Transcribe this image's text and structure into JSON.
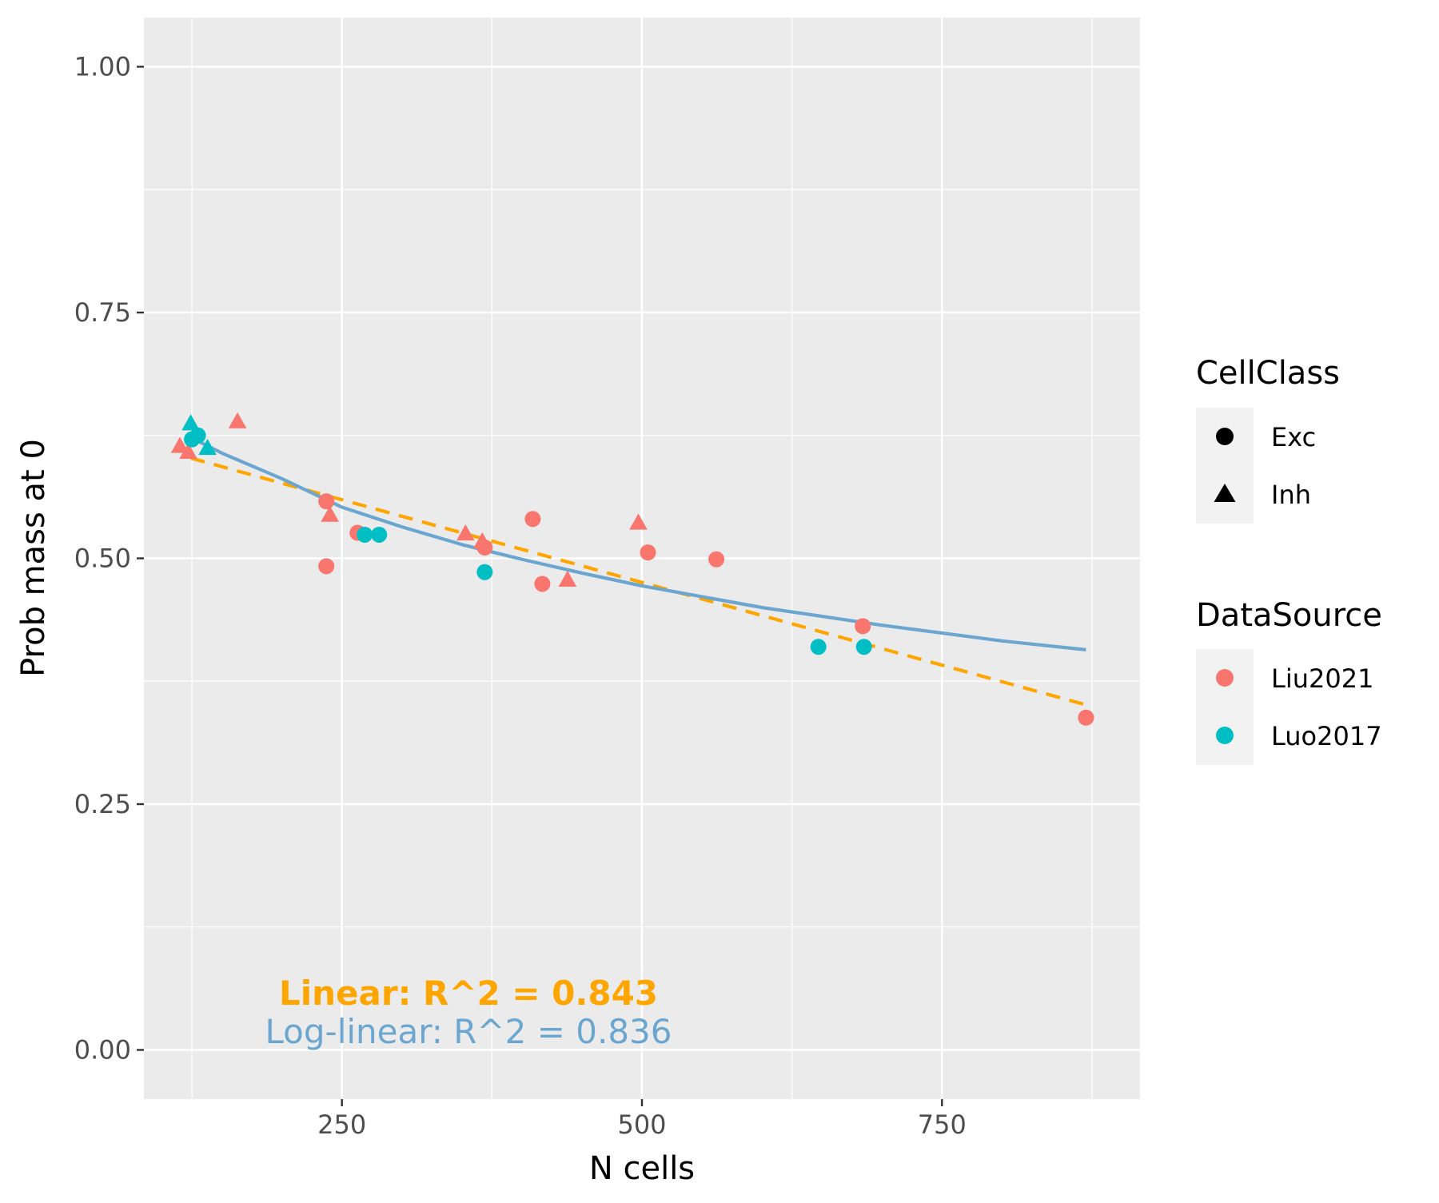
{
  "colors": {
    "panel_bg": "#EBEBEB",
    "grid": "#FFFFFF",
    "liu2021": "#F8766D",
    "luo2017": "#00BFC4",
    "linear_fit": "#FFA500",
    "loglinear_fit": "#6BA6D0",
    "legend_key_bg": "#F2F2F2"
  },
  "chart_data": {
    "type": "scatter",
    "xlabel": "N cells",
    "ylabel": "Prob mass at 0",
    "xlim": [
      85,
      915
    ],
    "ylim": [
      -0.05,
      1.05
    ],
    "x_ticks": [
      250,
      500,
      750
    ],
    "x_tick_labels": [
      "250",
      "500",
      "750"
    ],
    "x_minor_ticks": [
      125,
      375,
      625,
      875
    ],
    "y_ticks": [
      0,
      0.25,
      0.5,
      0.75,
      1.0
    ],
    "y_tick_labels": [
      "0.00",
      "0.25",
      "0.50",
      "0.75",
      "1.00"
    ],
    "y_minor_ticks": [
      0.125,
      0.375,
      0.625,
      0.875
    ],
    "grid": true,
    "points": [
      {
        "x": 115,
        "y": 0.613,
        "source": "Liu2021",
        "cellclass": "Inh"
      },
      {
        "x": 122,
        "y": 0.607,
        "source": "Liu2021",
        "cellclass": "Inh"
      },
      {
        "x": 163,
        "y": 0.638,
        "source": "Liu2021",
        "cellclass": "Inh"
      },
      {
        "x": 237,
        "y": 0.558,
        "source": "Liu2021",
        "cellclass": "Exc"
      },
      {
        "x": 237,
        "y": 0.492,
        "source": "Liu2021",
        "cellclass": "Exc"
      },
      {
        "x": 240,
        "y": 0.543,
        "source": "Liu2021",
        "cellclass": "Inh"
      },
      {
        "x": 263,
        "y": 0.526,
        "source": "Liu2021",
        "cellclass": "Exc"
      },
      {
        "x": 353,
        "y": 0.524,
        "source": "Liu2021",
        "cellclass": "Inh"
      },
      {
        "x": 367,
        "y": 0.516,
        "source": "Liu2021",
        "cellclass": "Inh"
      },
      {
        "x": 369,
        "y": 0.511,
        "source": "Liu2021",
        "cellclass": "Exc"
      },
      {
        "x": 409,
        "y": 0.54,
        "source": "Liu2021",
        "cellclass": "Exc"
      },
      {
        "x": 417,
        "y": 0.474,
        "source": "Liu2021",
        "cellclass": "Exc"
      },
      {
        "x": 438,
        "y": 0.477,
        "source": "Liu2021",
        "cellclass": "Inh"
      },
      {
        "x": 497,
        "y": 0.535,
        "source": "Liu2021",
        "cellclass": "Inh"
      },
      {
        "x": 505,
        "y": 0.506,
        "source": "Liu2021",
        "cellclass": "Exc"
      },
      {
        "x": 562,
        "y": 0.499,
        "source": "Liu2021",
        "cellclass": "Exc"
      },
      {
        "x": 684,
        "y": 0.431,
        "source": "Liu2021",
        "cellclass": "Exc"
      },
      {
        "x": 870,
        "y": 0.338,
        "source": "Liu2021",
        "cellclass": "Exc"
      },
      {
        "x": 124,
        "y": 0.636,
        "source": "Luo2017",
        "cellclass": "Inh"
      },
      {
        "x": 125,
        "y": 0.621,
        "source": "Luo2017",
        "cellclass": "Exc"
      },
      {
        "x": 130,
        "y": 0.625,
        "source": "Luo2017",
        "cellclass": "Exc"
      },
      {
        "x": 138,
        "y": 0.611,
        "source": "Luo2017",
        "cellclass": "Inh"
      },
      {
        "x": 269,
        "y": 0.524,
        "source": "Luo2017",
        "cellclass": "Exc"
      },
      {
        "x": 281,
        "y": 0.524,
        "source": "Luo2017",
        "cellclass": "Exc"
      },
      {
        "x": 369,
        "y": 0.486,
        "source": "Luo2017",
        "cellclass": "Exc"
      },
      {
        "x": 647,
        "y": 0.41,
        "source": "Luo2017",
        "cellclass": "Exc"
      },
      {
        "x": 685,
        "y": 0.41,
        "source": "Luo2017",
        "cellclass": "Exc"
      }
    ],
    "series": [
      {
        "points": [
          [
            124,
            0.602
          ],
          [
            870,
            0.351
          ]
        ],
        "style": "dashed"
      },
      {
        "points": [
          [
            124,
            0.623
          ],
          [
            150,
            0.607
          ],
          [
            200,
            0.581
          ],
          [
            250,
            0.552
          ],
          [
            300,
            0.532
          ],
          [
            350,
            0.514
          ],
          [
            400,
            0.499
          ],
          [
            450,
            0.485
          ],
          [
            500,
            0.472
          ],
          [
            550,
            0.461
          ],
          [
            600,
            0.45
          ],
          [
            650,
            0.441
          ],
          [
            700,
            0.432
          ],
          [
            750,
            0.424
          ],
          [
            800,
            0.416
          ],
          [
            870,
            0.407
          ]
        ],
        "style": "solid"
      }
    ],
    "annotations": {
      "linear": "Linear: R^2 = 0.843",
      "loglinear": "Log-linear: R^2 = 0.836"
    },
    "legend": {
      "placement": "right",
      "cellclass": {
        "title": "CellClass",
        "items": [
          {
            "label": "Exc",
            "shape": "circle"
          },
          {
            "label": "Inh",
            "shape": "triangle"
          }
        ]
      },
      "datasource": {
        "title": "DataSource",
        "items": [
          {
            "label": "Liu2021",
            "color": "#F8766D"
          },
          {
            "label": "Luo2017",
            "color": "#00BFC4"
          }
        ]
      }
    }
  }
}
